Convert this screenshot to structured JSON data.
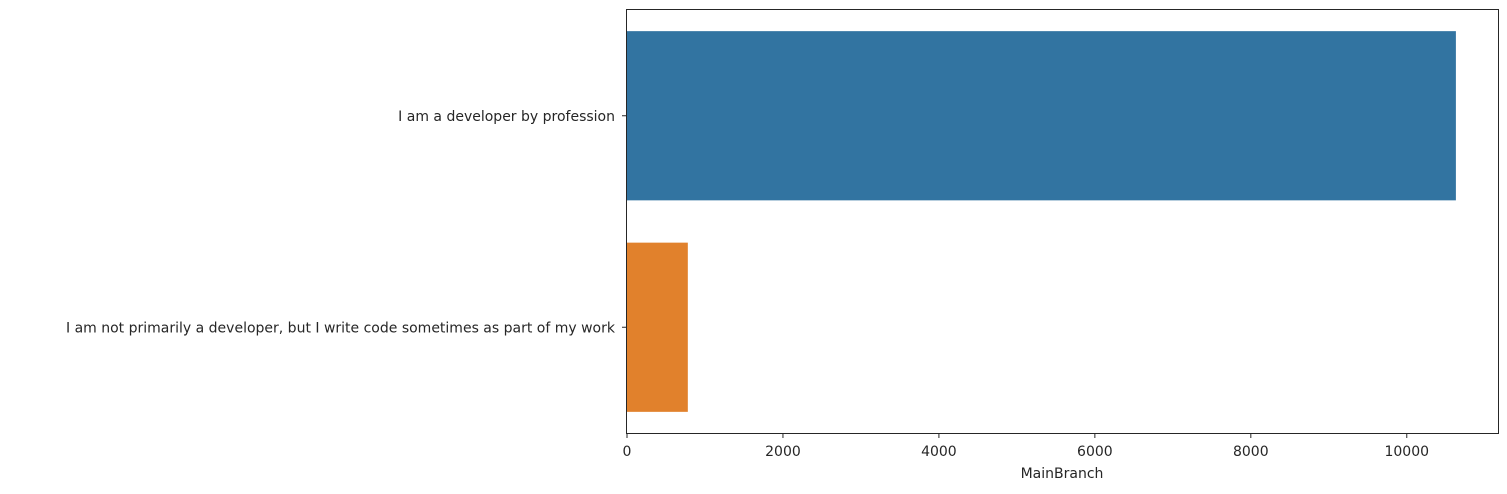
{
  "chart_data": {
    "type": "bar",
    "orientation": "horizontal",
    "categories": [
      "I am a developer by profession",
      "I am not primarily a developer, but I write code sometimes as part of my work"
    ],
    "values": [
      10630,
      780
    ],
    "colors": [
      "#3274a1",
      "#e1812c"
    ],
    "xlabel": "MainBranch",
    "ylabel": "",
    "xlim": [
      0,
      11170
    ],
    "xticks": [
      0,
      2000,
      4000,
      6000,
      8000,
      10000
    ],
    "xtick_labels": [
      "0",
      "2000",
      "4000",
      "6000",
      "8000",
      "10000"
    ],
    "grid": false,
    "legend": "none"
  }
}
